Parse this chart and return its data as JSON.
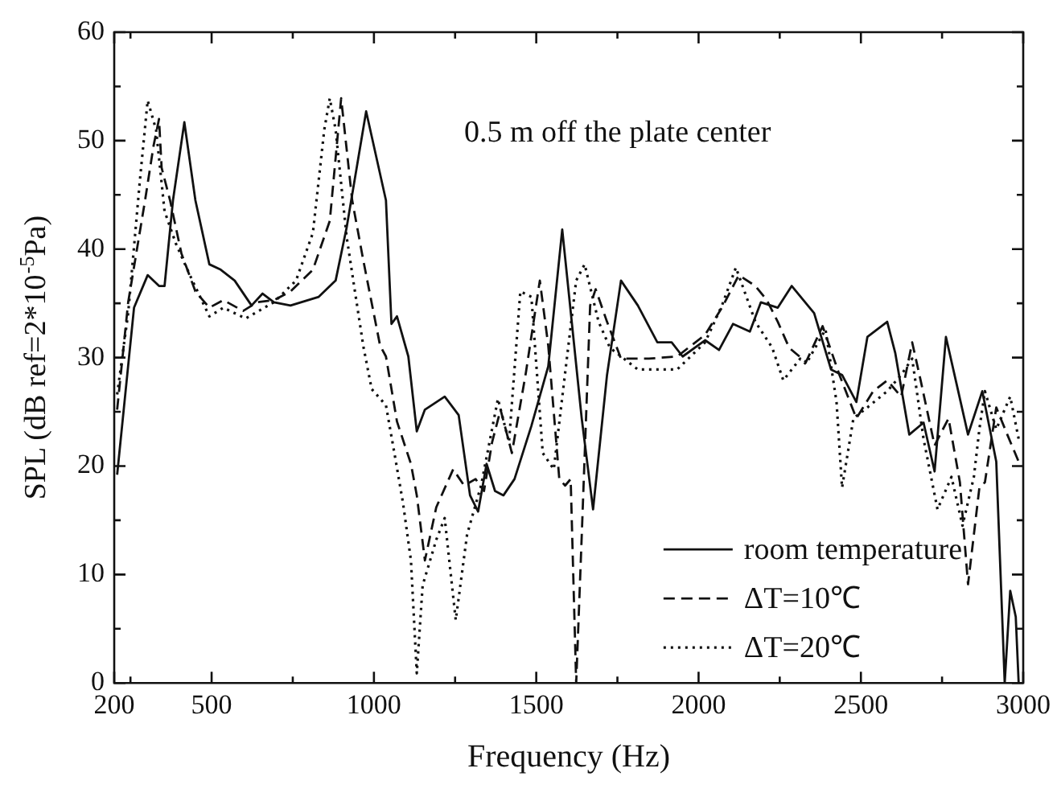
{
  "chart_data": {
    "type": "line",
    "xlabel": "Frequency (Hz)",
    "ylabel": "SPL (dB ref=2*10$^{-5}$Pa)",
    "annotations": [
      "0.5 m off the plate center"
    ],
    "xlim": [
      200,
      3000
    ],
    "ylim": [
      0,
      60
    ],
    "xticks": [
      200,
      {
        "value": 250,
        "label": null
      },
      500,
      {
        "value": 750,
        "label": null
      },
      1000,
      {
        "value": 1250,
        "label": null
      },
      1500,
      {
        "value": 1750,
        "label": null
      },
      2000,
      {
        "value": 2250,
        "label": null
      },
      2500,
      {
        "value": 2750,
        "label": null
      },
      3000
    ],
    "yticks": [
      0,
      {
        "value": 5,
        "label": null
      },
      10,
      {
        "value": 15,
        "label": null
      },
      20,
      {
        "value": 25,
        "label": null
      },
      30,
      {
        "value": 35,
        "label": null
      },
      40,
      {
        "value": 45,
        "label": null
      },
      50,
      {
        "value": 55,
        "label": null
      },
      60
    ],
    "legend": "bottom right",
    "marker": "none",
    "series": [
      {
        "name": "room temperature",
        "color": "#111111",
        "line_style": "solid",
        "x": [
          209,
          261,
          303,
          338,
          355,
          381,
          416,
          450,
          493,
          528,
          571,
          623,
          657,
          692,
          743,
          830,
          882,
          916,
          976,
          1037,
          1054,
          1071,
          1106,
          1132,
          1157,
          1218,
          1261,
          1296,
          1321,
          1347,
          1373,
          1399,
          1433,
          1485,
          1537,
          1580,
          1640,
          1675,
          1718,
          1761,
          1813,
          1873,
          1917,
          1951,
          2020,
          2063,
          2106,
          2158,
          2192,
          2244,
          2287,
          2356,
          2408,
          2442,
          2486,
          2520,
          2581,
          2606,
          2649,
          2693,
          2727,
          2762,
          2796,
          2830,
          2874,
          2917,
          2943,
          2960,
          2977,
          2986
        ],
        "values": [
          19.2,
          34.6,
          37.6,
          36.6,
          36.6,
          44.5,
          51.7,
          44.5,
          38.6,
          38.1,
          37.1,
          34.8,
          35.9,
          35.1,
          34.8,
          35.6,
          37.1,
          42.0,
          52.7,
          44.5,
          33.1,
          33.8,
          30.1,
          23.2,
          25.2,
          26.4,
          24.7,
          17.3,
          15.8,
          20.2,
          17.7,
          17.3,
          18.8,
          23.7,
          29.2,
          41.8,
          24.4,
          16.0,
          28.4,
          37.1,
          34.8,
          31.4,
          31.4,
          30.1,
          31.6,
          30.7,
          33.1,
          32.4,
          35.1,
          34.6,
          36.6,
          34.1,
          28.9,
          28.4,
          25.9,
          31.9,
          33.3,
          30.4,
          22.9,
          24.0,
          19.5,
          31.9,
          27.4,
          22.9,
          26.9,
          20.4,
          0,
          8.5,
          6.1,
          0
        ]
      },
      {
        "name": "ΔT=10℃",
        "color": "#111111",
        "line_style": "dashed",
        "x": [
          209,
          243,
          295,
          321,
          338,
          346,
          372,
          407,
          450,
          493,
          536,
          597,
          640,
          692,
          743,
          812,
          864,
          899,
          933,
          967,
          1019,
          1037,
          1071,
          1114,
          1132,
          1157,
          1192,
          1244,
          1278,
          1313,
          1339,
          1364,
          1390,
          1425,
          1468,
          1511,
          1537,
          1571,
          1589,
          1606,
          1623,
          1640,
          1666,
          1683,
          1718,
          1761,
          1847,
          1934,
          2020,
          2072,
          2124,
          2175,
          2210,
          2244,
          2279,
          2331,
          2382,
          2434,
          2486,
          2538,
          2581,
          2624,
          2658,
          2684,
          2727,
          2770,
          2805,
          2830,
          2865,
          2882,
          2917,
          2951,
          2986,
          3000
        ],
        "values": [
          25.2,
          35.1,
          44.5,
          49.5,
          52.0,
          47.5,
          44.5,
          39.6,
          36.1,
          34.6,
          35.3,
          34.3,
          35.1,
          35.3,
          36.1,
          38.1,
          42.6,
          53.9,
          44.5,
          39.0,
          31.1,
          30.1,
          24.1,
          20.2,
          17.3,
          11.3,
          16.2,
          19.7,
          18.2,
          18.8,
          17.7,
          22.2,
          25.2,
          21.2,
          28.6,
          37.1,
          31.1,
          18.8,
          18.2,
          18.8,
          0,
          13.5,
          34.8,
          36.3,
          33.3,
          29.9,
          29.9,
          30.1,
          32.1,
          34.6,
          37.6,
          36.6,
          35.3,
          33.3,
          30.9,
          29.6,
          32.9,
          28.4,
          24.4,
          26.9,
          27.9,
          26.4,
          31.4,
          27.9,
          21.9,
          24.4,
          18.5,
          9.1,
          18.0,
          18.5,
          25.4,
          22.9,
          20.4,
          20.0
        ]
      },
      {
        "name": "ΔT=20℃",
        "color": "#111111",
        "line_style": "dotted",
        "x": [
          209,
          243,
          278,
          303,
          329,
          355,
          390,
          433,
          493,
          536,
          605,
          692,
          760,
          812,
          847,
          864,
          882,
          916,
          967,
          993,
          1037,
          1063,
          1089,
          1114,
          1132,
          1150,
          1192,
          1218,
          1252,
          1287,
          1330,
          1382,
          1416,
          1451,
          1485,
          1520,
          1554,
          1589,
          1623,
          1649,
          1692,
          1727,
          1813,
          1934,
          2020,
          2072,
          2115,
          2175,
          2227,
          2261,
          2313,
          2331,
          2391,
          2425,
          2442,
          2477,
          2520,
          2581,
          2624,
          2658,
          2693,
          2736,
          2779,
          2813,
          2848,
          2865,
          2882,
          2917,
          2960,
          2986
        ],
        "values": [
          26.6,
          34.1,
          46.0,
          53.7,
          51.0,
          43.5,
          40.5,
          37.6,
          33.8,
          34.6,
          33.6,
          35.1,
          37.1,
          41.5,
          51.0,
          53.9,
          51.0,
          41.1,
          31.1,
          27.1,
          25.6,
          21.2,
          16.7,
          11.3,
          0.9,
          9.0,
          13.2,
          15.2,
          5.8,
          13.7,
          18.2,
          26.2,
          22.2,
          36.1,
          35.6,
          21.2,
          19.7,
          28.6,
          37.1,
          38.6,
          33.3,
          30.9,
          28.9,
          28.9,
          31.4,
          34.8,
          38.3,
          33.3,
          30.9,
          27.9,
          29.9,
          29.4,
          32.6,
          25.9,
          18.0,
          24.4,
          25.4,
          26.9,
          28.4,
          29.9,
          22.5,
          16.0,
          19.0,
          14.5,
          19.0,
          23.4,
          26.9,
          23.4,
          26.4,
          22.5
        ]
      }
    ]
  }
}
